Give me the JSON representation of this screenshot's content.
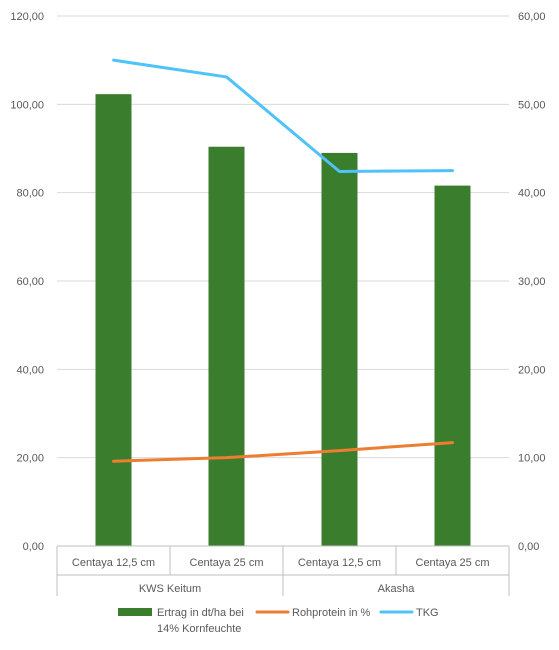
{
  "chart_data": {
    "type": "bar",
    "groups": [
      {
        "label": "KWS Keitum",
        "categories": [
          "Centaya 12,5 cm",
          "Centaya 25 cm"
        ]
      },
      {
        "label": "Akasha",
        "categories": [
          "Centaya 12,5 cm",
          "Centaya 25 cm"
        ]
      }
    ],
    "categories": [
      "Centaya 12,5 cm",
      "Centaya 25 cm",
      "Centaya 12,5 cm",
      "Centaya 25 cm"
    ],
    "series": [
      {
        "name": "Ertrag in dt/ha bei 14% Kornfeuchte",
        "legend_lines": [
          "Ertrag in dt/ha bei",
          "14% Kornfeuchte"
        ],
        "type": "bar",
        "axis": "left",
        "color": "#3a7d2c",
        "values": [
          102.3,
          90.4,
          89.0,
          81.6
        ]
      },
      {
        "name": "Rohprotein in %",
        "type": "line",
        "axis": "right",
        "color": "#ed7d31",
        "values": [
          9.6,
          10.0,
          10.8,
          11.7
        ]
      },
      {
        "name": "TKG",
        "type": "line",
        "axis": "right",
        "color": "#4fc3f7",
        "values": [
          55.0,
          53.1,
          42.4,
          42.5
        ]
      }
    ],
    "y_left": {
      "min": 0,
      "max": 120,
      "ticks": [
        "0,00",
        "20,00",
        "40,00",
        "60,00",
        "80,00",
        "100,00",
        "120,00"
      ]
    },
    "y_right": {
      "min": 0,
      "max": 60,
      "ticks": [
        "0,00",
        "10,00",
        "20,00",
        "30,00",
        "40,00",
        "50,00",
        "60,00"
      ]
    },
    "grid": true,
    "legend_position": "bottom"
  }
}
